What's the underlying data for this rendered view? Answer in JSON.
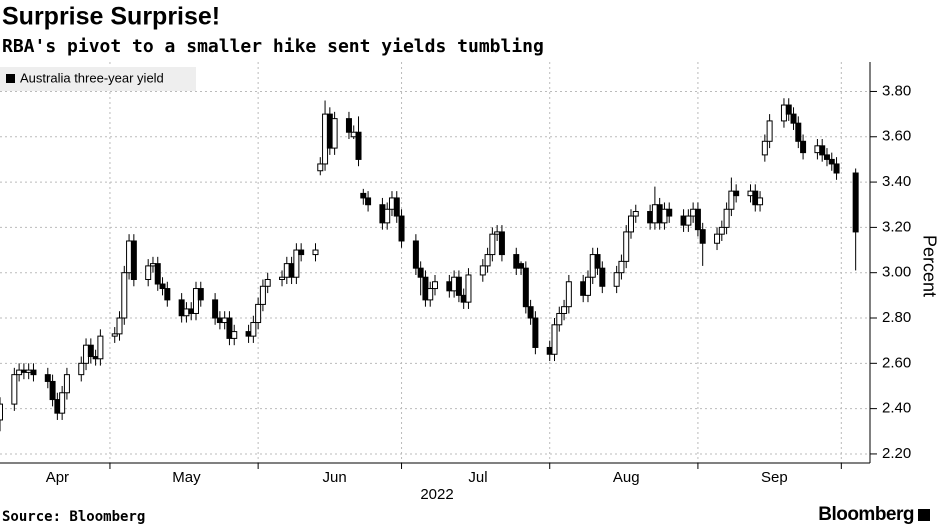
{
  "chart_data": {
    "type": "candlestick",
    "title": "Surprise Surprise!",
    "subtitle": "RBA's pivot to a smaller hike sent yields tumbling",
    "xlabel": "2022",
    "ylabel": "Percent",
    "source": "Source: Bloomberg",
    "brand": "Bloomberg",
    "legend": "upper left",
    "grid": true,
    "x": [
      98,
      101,
      102,
      103,
      104,
      105,
      108,
      109,
      110,
      111,
      112,
      115,
      116,
      117,
      118,
      119,
      122,
      123,
      124,
      125,
      126,
      129,
      130,
      131,
      132,
      133,
      136,
      137,
      138,
      139,
      140,
      143,
      144,
      145,
      146,
      147,
      150,
      151,
      152,
      153,
      154,
      157,
      158,
      159,
      160,
      161,
      164,
      165,
      166,
      167,
      168,
      171,
      172,
      173,
      174,
      175,
      178,
      179,
      180,
      181,
      182,
      185,
      186,
      187,
      188,
      189,
      192,
      193,
      194,
      195,
      196,
      199,
      200,
      201,
      202,
      203,
      206,
      207,
      208,
      209,
      210,
      213,
      214,
      215,
      216,
      217,
      220,
      221,
      222,
      223,
      224,
      227,
      228,
      229,
      230,
      231,
      234,
      235,
      236,
      237,
      238,
      241,
      242,
      243,
      244,
      245,
      248,
      249,
      250,
      251,
      252,
      255,
      256,
      257,
      258,
      259,
      262,
      263,
      264,
      265,
      266,
      269,
      270,
      271,
      272,
      273,
      277
    ],
    "series": [
      {
        "name": "Australia three-year yield",
        "color": "#000000",
        "up_color": "#ffffff",
        "down_color": "#000000",
        "open": [
          2.35,
          2.42,
          2.55,
          2.57,
          2.56,
          2.57,
          2.55,
          2.52,
          2.44,
          2.38,
          2.47,
          2.55,
          2.6,
          2.68,
          2.63,
          2.62,
          2.72,
          2.73,
          2.8,
          3.0,
          3.14,
          2.97,
          3.03,
          3.04,
          2.95,
          2.93,
          2.88,
          2.81,
          2.84,
          2.82,
          2.93,
          2.88,
          2.8,
          2.78,
          2.8,
          2.71,
          2.74,
          2.72,
          2.78,
          2.86,
          2.94,
          2.97,
          2.98,
          3.04,
          2.98,
          3.1,
          3.08,
          3.45,
          3.48,
          3.7,
          3.55,
          3.68,
          3.6,
          3.62,
          3.35,
          3.33,
          3.3,
          3.22,
          3.28,
          3.33,
          3.25,
          3.14,
          3.02,
          2.98,
          2.88,
          2.93,
          2.96,
          2.92,
          2.98,
          2.9,
          2.87,
          2.99,
          3.03,
          3.08,
          3.17,
          3.18,
          3.08,
          3.04,
          3.02,
          2.85,
          2.8,
          2.67,
          2.64,
          2.77,
          2.82,
          2.85,
          2.96,
          2.9,
          2.98,
          3.08,
          3.02,
          2.94,
          3.0,
          3.05,
          3.18,
          3.25,
          3.27,
          3.22,
          3.3,
          3.22,
          3.28,
          3.25,
          3.21,
          3.25,
          3.28,
          3.19,
          3.13,
          3.17,
          3.2,
          3.28,
          3.36,
          3.34,
          3.36,
          3.3,
          3.52,
          3.58,
          3.67,
          3.74,
          3.7,
          3.66,
          3.58,
          3.53,
          3.56,
          3.52,
          3.5,
          3.48,
          3.44
        ],
        "high": [
          2.45,
          2.58,
          2.6,
          2.6,
          2.6,
          2.6,
          2.58,
          2.55,
          2.47,
          2.5,
          2.58,
          2.63,
          2.71,
          2.71,
          2.66,
          2.75,
          2.76,
          2.83,
          3.03,
          3.17,
          3.17,
          3.06,
          3.07,
          3.07,
          2.98,
          2.96,
          2.91,
          2.87,
          2.87,
          2.96,
          2.96,
          2.91,
          2.83,
          2.83,
          2.83,
          2.77,
          2.77,
          2.81,
          2.89,
          2.97,
          3.0,
          3.01,
          3.07,
          3.07,
          3.13,
          3.13,
          3.13,
          3.51,
          3.76,
          3.73,
          3.71,
          3.71,
          3.65,
          3.69,
          3.37,
          3.36,
          3.33,
          3.31,
          3.36,
          3.36,
          3.28,
          3.17,
          3.05,
          3.01,
          2.96,
          2.99,
          2.99,
          3.01,
          3.01,
          2.93,
          3.02,
          3.06,
          3.11,
          3.2,
          3.21,
          3.21,
          3.11,
          3.05,
          3.05,
          2.88,
          2.83,
          2.7,
          2.8,
          2.85,
          2.88,
          2.99,
          2.99,
          3.01,
          3.11,
          3.11,
          3.05,
          3.03,
          3.08,
          3.21,
          3.28,
          3.3,
          3.3,
          3.38,
          3.33,
          3.31,
          3.31,
          3.28,
          3.28,
          3.31,
          3.31,
          3.22,
          3.2,
          3.23,
          3.31,
          3.42,
          3.39,
          3.39,
          3.39,
          3.36,
          3.61,
          3.7,
          3.77,
          3.77,
          3.73,
          3.69,
          3.61,
          3.59,
          3.59,
          3.55,
          3.53,
          3.51,
          3.46
        ],
        "low": [
          2.3,
          2.39,
          2.52,
          2.53,
          2.53,
          2.52,
          2.49,
          2.41,
          2.35,
          2.35,
          2.44,
          2.52,
          2.57,
          2.6,
          2.59,
          2.59,
          2.69,
          2.7,
          2.77,
          2.97,
          2.94,
          2.94,
          3.0,
          2.92,
          2.9,
          2.85,
          2.78,
          2.78,
          2.79,
          2.79,
          2.85,
          2.77,
          2.75,
          2.75,
          2.68,
          2.68,
          2.69,
          2.69,
          2.75,
          2.83,
          2.91,
          2.94,
          2.95,
          2.95,
          2.95,
          3.05,
          3.05,
          3.43,
          3.45,
          3.52,
          3.52,
          3.59,
          3.59,
          3.47,
          3.3,
          3.27,
          3.19,
          3.19,
          3.25,
          3.22,
          3.11,
          2.99,
          2.9,
          2.85,
          2.85,
          2.9,
          2.89,
          2.89,
          2.87,
          2.84,
          2.84,
          2.96,
          3.0,
          3.05,
          3.14,
          3.05,
          2.99,
          2.99,
          2.82,
          2.77,
          2.64,
          2.61,
          2.61,
          2.74,
          2.79,
          2.82,
          2.87,
          2.87,
          2.95,
          2.99,
          2.91,
          2.91,
          2.97,
          3.02,
          3.15,
          3.22,
          3.19,
          3.19,
          3.19,
          3.19,
          3.22,
          3.18,
          3.18,
          3.22,
          3.16,
          3.03,
          3.1,
          3.14,
          3.17,
          3.25,
          3.31,
          3.31,
          3.27,
          3.27,
          3.49,
          3.55,
          3.64,
          3.67,
          3.63,
          3.55,
          3.5,
          3.5,
          3.49,
          3.47,
          3.45,
          3.41,
          3.01
        ],
        "close": [
          2.42,
          2.55,
          2.57,
          2.56,
          2.57,
          2.55,
          2.52,
          2.44,
          2.38,
          2.47,
          2.55,
          2.6,
          2.68,
          2.63,
          2.62,
          2.72,
          2.73,
          2.8,
          3.0,
          3.14,
          2.97,
          3.03,
          3.04,
          2.95,
          2.93,
          2.88,
          2.81,
          2.84,
          2.82,
          2.93,
          2.88,
          2.8,
          2.78,
          2.8,
          2.71,
          2.74,
          2.72,
          2.78,
          2.86,
          2.94,
          2.97,
          2.98,
          3.04,
          2.98,
          3.1,
          3.08,
          3.1,
          3.48,
          3.7,
          3.55,
          3.68,
          3.62,
          3.62,
          3.5,
          3.33,
          3.3,
          3.22,
          3.28,
          3.33,
          3.25,
          3.14,
          3.02,
          2.98,
          2.88,
          2.93,
          2.96,
          2.92,
          2.98,
          2.9,
          2.87,
          2.99,
          3.03,
          3.08,
          3.17,
          3.18,
          3.08,
          3.02,
          3.02,
          2.85,
          2.8,
          2.67,
          2.64,
          2.77,
          2.82,
          2.85,
          2.96,
          2.9,
          2.98,
          3.08,
          3.02,
          2.94,
          3.0,
          3.05,
          3.18,
          3.25,
          3.27,
          3.22,
          3.3,
          3.22,
          3.28,
          3.25,
          3.21,
          3.25,
          3.28,
          3.19,
          3.13,
          3.17,
          3.2,
          3.28,
          3.36,
          3.34,
          3.36,
          3.3,
          3.33,
          3.58,
          3.67,
          3.74,
          3.7,
          3.66,
          3.58,
          3.53,
          3.56,
          3.52,
          3.5,
          3.48,
          3.44,
          3.18
        ]
      }
    ],
    "xlim": [
      98,
      280
    ],
    "xticks": [
      {
        "value": 110,
        "label": "Apr"
      },
      {
        "value": 137,
        "label": "May"
      },
      {
        "value": 168,
        "label": "Jun"
      },
      {
        "value": 198,
        "label": "Jul"
      },
      {
        "value": 229,
        "label": "Aug"
      },
      {
        "value": 260,
        "label": "Sep"
      }
    ],
    "xgrid": [
      121,
      152,
      182,
      213,
      244,
      274
    ],
    "ylim": [
      2.16,
      3.93
    ],
    "yticks": [
      {
        "value": 2.2,
        "label": "2.20"
      },
      {
        "value": 2.4,
        "label": "2.40"
      },
      {
        "value": 2.6,
        "label": "2.60"
      },
      {
        "value": 2.8,
        "label": "2.80"
      },
      {
        "value": 3.0,
        "label": "3.00"
      },
      {
        "value": 3.2,
        "label": "3.20"
      },
      {
        "value": 3.4,
        "label": "3.40"
      },
      {
        "value": 3.6,
        "label": "3.60"
      },
      {
        "value": 3.8,
        "label": "3.80"
      }
    ]
  }
}
